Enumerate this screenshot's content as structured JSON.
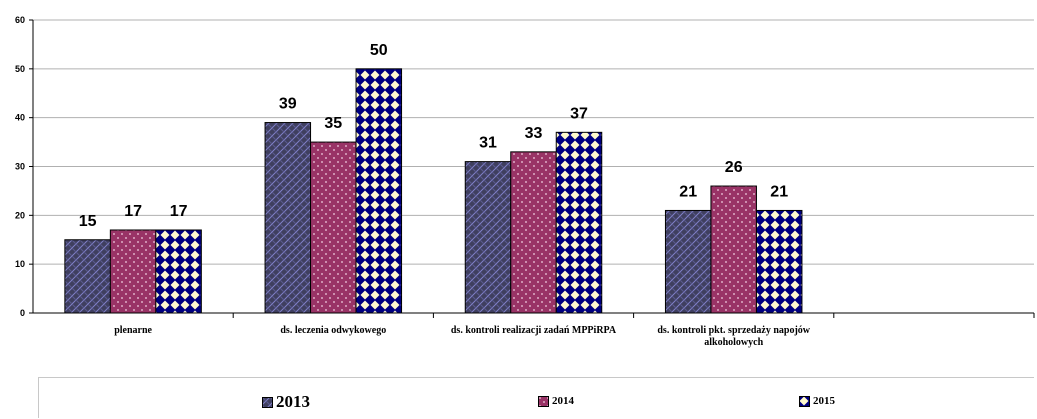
{
  "chart_data": {
    "type": "bar",
    "categories": [
      "plenarne",
      "ds. leczenia odwykowego",
      "ds. kontroli realizacji zadań MPPiRPA",
      "ds. kontroli pkt. sprzedaży napojów alkoholowych"
    ],
    "category_lines": [
      [
        "plenarne"
      ],
      [
        "ds. leczenia odwykowego"
      ],
      [
        "ds. kontroli realizacji zadań MPPiRPA"
      ],
      [
        "ds. kontroli pkt. sprzedaży napojów",
        "alkoholowych"
      ]
    ],
    "series": [
      {
        "name": "2013",
        "values": [
          15,
          39,
          31,
          21
        ],
        "color": "#3f3f5f",
        "pattern": "crosshatch"
      },
      {
        "name": "2014",
        "values": [
          17,
          35,
          33,
          26
        ],
        "color": "#993366",
        "pattern": "dots"
      },
      {
        "name": "2015",
        "values": [
          17,
          50,
          37,
          21
        ],
        "color": "#000080",
        "pattern": "diamonds"
      }
    ],
    "ylim": [
      0,
      60
    ],
    "yticks": [
      0,
      10,
      20,
      30,
      40,
      50,
      60
    ],
    "grid": true,
    "legend": "bottom",
    "title": "",
    "xlabel": "",
    "ylabel": ""
  }
}
